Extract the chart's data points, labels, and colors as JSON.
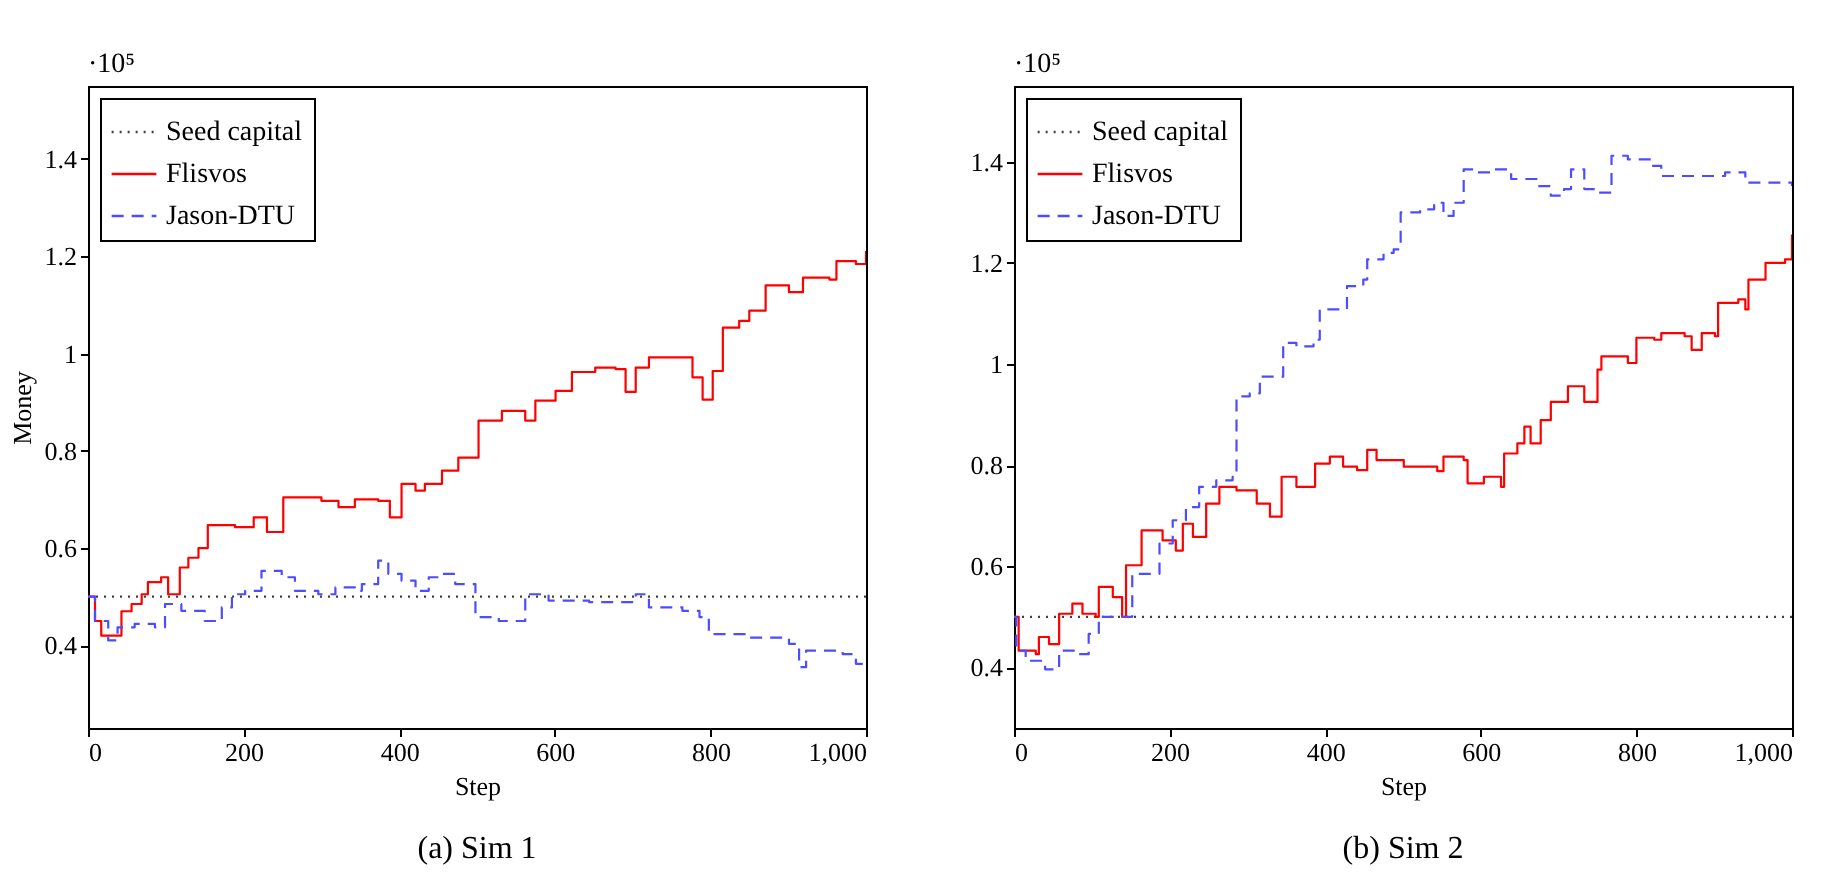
{
  "chart_data": [
    {
      "type": "step",
      "title": "(a) Sim 1",
      "xlabel": "Step",
      "ylabel": "Money",
      "annotations": [
        "·10⁵"
      ],
      "xlim": [
        0,
        1000
      ],
      "ylim": [
        0.23,
        1.55
      ],
      "xticks": [
        0,
        200,
        400,
        600,
        800,
        {
          "value": 1000,
          "label": "1,000"
        }
      ],
      "yticks": [
        0.4,
        0.6,
        0.8,
        {
          "value": 1,
          "label": "1"
        },
        1.2,
        1.4
      ],
      "grid": false,
      "legend": "top left",
      "series": [
        {
          "name": "Seed capital",
          "line_style": "dotted",
          "color": "#404040",
          "x": [
            0,
            1000
          ],
          "values": [
            0.5,
            0.5
          ]
        },
        {
          "name": "Flisvos",
          "line_style": "solid",
          "color": "#ff0000",
          "x": [
            0,
            9,
            17,
            34,
            43,
            56,
            69,
            77,
            94,
            103,
            118,
            129,
            142,
            154,
            189,
            213,
            230,
            251,
            300,
            322,
            343,
            373,
            388,
            403,
            421,
            433,
            455,
            476,
            502,
            532,
            562,
            575,
            601,
            622,
            652,
            678,
            691,
            704,
            721,
            768,
            777,
            790,
            803,
            816,
            837,
            850,
            871,
            901,
            919,
            953,
            962,
            987,
            1000
          ],
          "values": [
            0.5,
            0.45,
            0.42,
            0.42,
            0.47,
            0.485,
            0.505,
            0.53,
            0.54,
            0.505,
            0.56,
            0.58,
            0.6,
            0.647,
            0.643,
            0.663,
            0.633,
            0.704,
            0.697,
            0.684,
            0.7,
            0.697,
            0.663,
            0.732,
            0.718,
            0.732,
            0.759,
            0.786,
            0.862,
            0.882,
            0.862,
            0.903,
            0.923,
            0.962,
            0.971,
            0.968,
            0.921,
            0.971,
            0.992,
            0.992,
            0.951,
            0.905,
            0.964,
            1.053,
            1.067,
            1.088,
            1.14,
            1.126,
            1.156,
            1.152,
            1.19,
            1.184,
            1.211
          ]
        },
        {
          "name": "Jason-DTU",
          "line_style": "dashed",
          "color": "#4d4dff",
          "x": [
            0,
            9,
            26,
            38,
            60,
            86,
            99,
            120,
            150,
            172,
            185,
            202,
            223,
            249,
            266,
            296,
            318,
            343,
            352,
            373,
            386,
            403,
            421,
            438,
            455,
            472,
            498,
            528,
            562,
            592,
            644,
            704,
            721,
            764,
            786,
            798,
            850,
            901,
            914,
            923,
            970,
            987,
            1000
          ],
          "values": [
            0.5,
            0.45,
            0.41,
            0.437,
            0.444,
            0.437,
            0.485,
            0.471,
            0.45,
            0.478,
            0.505,
            0.512,
            0.553,
            0.54,
            0.512,
            0.505,
            0.519,
            0.512,
            0.526,
            0.574,
            0.547,
            0.533,
            0.512,
            0.54,
            0.547,
            0.526,
            0.458,
            0.45,
            0.505,
            0.492,
            0.489,
            0.505,
            0.478,
            0.471,
            0.458,
            0.423,
            0.416,
            0.403,
            0.355,
            0.389,
            0.382,
            0.362,
            0.358
          ]
        }
      ]
    },
    {
      "type": "step",
      "title": "(b) Sim 2",
      "xlabel": "Step",
      "annotations": [
        "·10⁵"
      ],
      "xlim": [
        0,
        1000
      ],
      "ylim": [
        0.28,
        1.55
      ],
      "xticks": [
        0,
        200,
        400,
        600,
        800,
        {
          "value": 1000,
          "label": "1,000"
        }
      ],
      "yticks": [
        0.4,
        0.6,
        0.8,
        {
          "value": 1,
          "label": "1"
        },
        1.2,
        1.4
      ],
      "grid": false,
      "legend": "top left",
      "series": [
        {
          "name": "Seed capital",
          "line_style": "dotted",
          "color": "#404040",
          "x": [
            0,
            1000
          ],
          "values": [
            0.5,
            0.5
          ]
        },
        {
          "name": "Flisvos",
          "line_style": "solid",
          "color": "#ff0000",
          "x": [
            0,
            6,
            28,
            32,
            45,
            58,
            75,
            88,
            105,
            109,
            127,
            139,
            144,
            164,
            191,
            208,
            217,
            230,
            247,
            264,
            286,
            312,
            329,
            344,
            363,
            387,
            406,
            423,
            441,
            454,
            466,
            501,
            544,
            552,
            578,
            583,
            604,
            626,
            630,
            647,
            656,
            664,
            677,
            690,
            712,
            733,
            750,
            755,
            789,
            800,
            823,
            832,
            862,
            871,
            884,
            901,
            905,
            931,
            940,
            944,
            966,
            991,
            1000
          ],
          "values": [
            0.5,
            0.433,
            0.426,
            0.46,
            0.446,
            0.506,
            0.526,
            0.506,
            0.5,
            0.559,
            0.539,
            0.5,
            0.602,
            0.671,
            0.651,
            0.631,
            0.684,
            0.658,
            0.724,
            0.757,
            0.75,
            0.724,
            0.698,
            0.777,
            0.757,
            0.803,
            0.817,
            0.797,
            0.79,
            0.83,
            0.81,
            0.797,
            0.788,
            0.817,
            0.81,
            0.764,
            0.777,
            0.757,
            0.823,
            0.843,
            0.876,
            0.843,
            0.889,
            0.925,
            0.956,
            0.925,
            0.989,
            1.015,
            1.002,
            1.052,
            1.048,
            1.061,
            1.055,
            1.028,
            1.061,
            1.055,
            1.121,
            1.128,
            1.108,
            1.167,
            1.2,
            1.207,
            1.256
          ]
        },
        {
          "name": "Jason-DTU",
          "line_style": "dashed",
          "color": "#4d4dff",
          "x": [
            0,
            3,
            15,
            40,
            58,
            79,
            96,
            109,
            139,
            152,
            170,
            187,
            204,
            221,
            238,
            260,
            281,
            286,
            303,
            316,
            338,
            346,
            363,
            385,
            393,
            415,
            428,
            449,
            454,
            475,
            488,
            497,
            522,
            540,
            552,
            565,
            578,
            596,
            613,
            639,
            673,
            690,
            707,
            716,
            733,
            750,
            768,
            789,
            819,
            832,
            888,
            914,
            940,
            1000
          ],
          "values": [
            0.5,
            0.433,
            0.413,
            0.396,
            0.433,
            0.426,
            0.466,
            0.5,
            0.5,
            0.585,
            0.585,
            0.645,
            0.691,
            0.717,
            0.757,
            0.77,
            0.777,
            0.936,
            0.942,
            0.975,
            0.975,
            1.042,
            1.035,
            1.048,
            1.108,
            1.108,
            1.154,
            1.167,
            1.207,
            1.22,
            1.227,
            1.3,
            1.306,
            1.319,
            1.293,
            1.319,
            1.385,
            1.379,
            1.385,
            1.366,
            1.352,
            1.333,
            1.346,
            1.385,
            1.346,
            1.339,
            1.412,
            1.405,
            1.392,
            1.372,
            1.372,
            1.379,
            1.359,
            1.352
          ]
        }
      ]
    }
  ]
}
